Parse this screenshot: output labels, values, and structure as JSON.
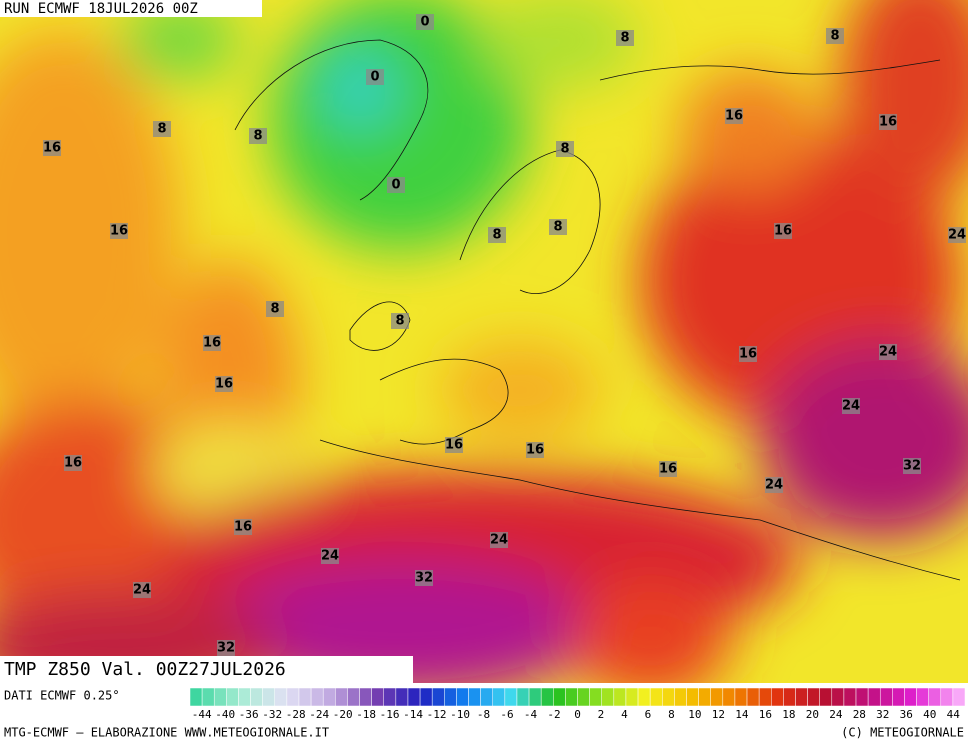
{
  "header": {
    "run": "RUN ECMWF 18JUL2026 00Z"
  },
  "map": {
    "title": "TMP Z850 Val. 00Z27JUL2026",
    "contour_labels": [
      0,
      0,
      0,
      8,
      8,
      8,
      8,
      8,
      8,
      8,
      8,
      8,
      16,
      16,
      16,
      16,
      16,
      16,
      16,
      16,
      16,
      16,
      16,
      16,
      16,
      24,
      24,
      24,
      24,
      24,
      24,
      24,
      32,
      32,
      32
    ]
  },
  "legend": {
    "source": "DATI ECMWF 0.25°",
    "ticks": [
      -44,
      -40,
      -36,
      -32,
      -28,
      -24,
      -20,
      -18,
      -16,
      -14,
      -12,
      -10,
      -8,
      -6,
      -4,
      -2,
      0,
      2,
      4,
      6,
      8,
      10,
      12,
      14,
      16,
      18,
      20,
      24,
      28,
      32,
      36,
      40,
      44
    ],
    "colors": [
      "#3fd6a0",
      "#a8ecd4",
      "#e0e0f4",
      "#c0a8e0",
      "#7840b0",
      "#2020c0",
      "#1080f0",
      "#40d8f0",
      "#20c020",
      "#90e020",
      "#f4f020",
      "#f4c000",
      "#f08000",
      "#e03010",
      "#b81030",
      "#c01080",
      "#e020d0",
      "#f8a8f8"
    ]
  },
  "footer": {
    "left": "MTG-ECMWF — ELABORAZIONE WWW.METEOGIORNALE.IT",
    "right": "(C) METEOGIORNALE"
  }
}
